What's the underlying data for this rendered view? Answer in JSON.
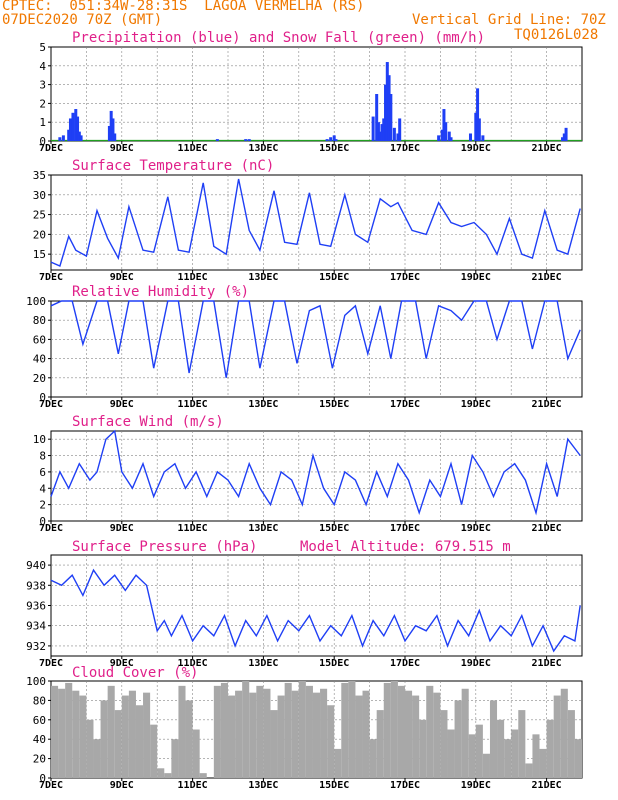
{
  "header": {
    "line1": "CPTEC:  051:34W-28:31S  LAGOA VERMELHA (RS)",
    "line2_left": "07DEC2020 70Z (GMT)",
    "line2_right": "Vertical Grid Line: 70Z",
    "code": "TQ0126L028"
  },
  "colors": {
    "line": "#1f3ff5",
    "snow": "#20a020",
    "title": "#e0208a",
    "header": "#f07800",
    "cloud": "#a8a8a8"
  },
  "chart_data": [
    {
      "id": "precip",
      "type": "bar",
      "title": "Precipitation (blue) and Snow Fall (green) (mm/h)",
      "x_ticks": [
        "7DEC",
        "9DEC",
        "11DEC",
        "13DEC",
        "15DEC",
        "17DEC",
        "19DEC",
        "21DEC"
      ],
      "ylim": [
        0,
        5
      ],
      "y_ticks": [
        0,
        1,
        2,
        3,
        4,
        5
      ],
      "x_unit": "day offset from 7DEC",
      "x": [
        0.25,
        0.35,
        0.5,
        0.55,
        0.62,
        0.7,
        0.75,
        0.8,
        0.85,
        1.65,
        1.7,
        1.75,
        1.8,
        4.7,
        5.5,
        5.6,
        7.8,
        7.9,
        8.0,
        8.05,
        9.1,
        9.2,
        9.25,
        9.3,
        9.35,
        9.4,
        9.45,
        9.5,
        9.55,
        9.6,
        9.7,
        9.8,
        9.85,
        10.95,
        11.05,
        11.1,
        11.15,
        11.25,
        11.3,
        11.85,
        12.0,
        12.05,
        12.1,
        12.2,
        14.45,
        14.5,
        14.55
      ],
      "values": [
        0.2,
        0.3,
        0.6,
        1.2,
        1.5,
        1.7,
        1.3,
        0.5,
        0.3,
        0.8,
        1.6,
        1.2,
        0.4,
        0.1,
        0.1,
        0.1,
        0.1,
        0.2,
        0.3,
        0.1,
        1.3,
        2.5,
        1.0,
        0.5,
        0.9,
        1.2,
        3.0,
        4.2,
        3.5,
        2.5,
        0.7,
        0.4,
        1.2,
        0.3,
        0.6,
        1.7,
        1.0,
        0.5,
        0.2,
        0.4,
        1.5,
        2.8,
        1.2,
        0.3,
        0.2,
        0.4,
        0.7
      ],
      "snow": 0
    },
    {
      "id": "temp",
      "type": "line",
      "title": "Surface Temperature (nC)",
      "x_ticks": [
        "7DEC",
        "9DEC",
        "11DEC",
        "13DEC",
        "15DEC",
        "17DEC",
        "19DEC",
        "21DEC"
      ],
      "ylim": [
        11,
        35
      ],
      "y_ticks": [
        15,
        20,
        25,
        30,
        35
      ],
      "x": [
        0,
        0.25,
        0.5,
        0.7,
        1.0,
        1.3,
        1.6,
        1.9,
        2.2,
        2.6,
        2.9,
        3.3,
        3.6,
        3.9,
        4.3,
        4.6,
        4.95,
        5.3,
        5.6,
        5.9,
        6.3,
        6.6,
        6.95,
        7.3,
        7.6,
        7.9,
        8.3,
        8.6,
        8.95,
        9.3,
        9.6,
        9.8,
        10.2,
        10.6,
        10.95,
        11.3,
        11.6,
        11.95,
        12.3,
        12.6,
        12.95,
        13.3,
        13.6,
        13.95,
        14.3,
        14.6,
        14.95
      ],
      "values": [
        13,
        12,
        19.5,
        16,
        14.5,
        26,
        19,
        14,
        27,
        16,
        15.5,
        29.5,
        16,
        15.5,
        33,
        17,
        15,
        34,
        21,
        16,
        31,
        18,
        17.5,
        30.5,
        17.5,
        17,
        30,
        20,
        18,
        29,
        27,
        28,
        21,
        20,
        28,
        23,
        22,
        23,
        20,
        15,
        24,
        15,
        14,
        26,
        16,
        15,
        26.5
      ]
    },
    {
      "id": "rh",
      "type": "line",
      "title": "Relative Humidity (%)",
      "x_ticks": [
        "7DEC",
        "9DEC",
        "11DEC",
        "13DEC",
        "15DEC",
        "17DEC",
        "19DEC",
        "21DEC"
      ],
      "ylim": [
        0,
        100
      ],
      "y_ticks": [
        0,
        20,
        40,
        60,
        80,
        100
      ],
      "x": [
        0,
        0.3,
        0.6,
        0.9,
        1.3,
        1.6,
        1.9,
        2.2,
        2.6,
        2.9,
        3.3,
        3.6,
        3.9,
        4.3,
        4.6,
        4.95,
        5.3,
        5.6,
        5.9,
        6.3,
        6.6,
        6.95,
        7.3,
        7.6,
        7.95,
        8.3,
        8.6,
        8.95,
        9.3,
        9.6,
        9.9,
        10.3,
        10.6,
        10.95,
        11.3,
        11.6,
        11.95,
        12.3,
        12.6,
        12.95,
        13.3,
        13.6,
        13.95,
        14.3,
        14.6,
        14.95
      ],
      "values": [
        95,
        100,
        100,
        55,
        100,
        100,
        45,
        100,
        100,
        30,
        100,
        100,
        25,
        100,
        100,
        20,
        100,
        100,
        30,
        100,
        100,
        35,
        90,
        95,
        30,
        85,
        95,
        45,
        95,
        40,
        100,
        100,
        40,
        95,
        90,
        80,
        100,
        100,
        60,
        100,
        100,
        50,
        100,
        100,
        40,
        70
      ]
    },
    {
      "id": "wind",
      "type": "line",
      "title": "Surface Wind (m/s)",
      "x_ticks": [
        "7DEC",
        "9DEC",
        "11DEC",
        "13DEC",
        "15DEC",
        "17DEC",
        "19DEC",
        "21DEC"
      ],
      "ylim": [
        0,
        11
      ],
      "y_ticks": [
        0,
        2,
        4,
        6,
        8,
        10
      ],
      "x": [
        0,
        0.25,
        0.5,
        0.8,
        1.1,
        1.3,
        1.55,
        1.8,
        2.0,
        2.3,
        2.6,
        2.9,
        3.2,
        3.5,
        3.8,
        4.1,
        4.4,
        4.7,
        5.0,
        5.3,
        5.6,
        5.9,
        6.2,
        6.5,
        6.8,
        7.1,
        7.4,
        7.7,
        8.0,
        8.3,
        8.6,
        8.9,
        9.2,
        9.5,
        9.8,
        10.1,
        10.4,
        10.7,
        11.0,
        11.3,
        11.6,
        11.9,
        12.2,
        12.5,
        12.8,
        13.1,
        13.4,
        13.7,
        14.0,
        14.3,
        14.6,
        14.95
      ],
      "values": [
        3,
        6,
        4,
        7,
        5,
        6,
        10,
        11,
        6,
        4,
        7,
        3,
        6,
        7,
        4,
        6,
        3,
        6,
        5,
        3,
        7,
        4,
        2,
        6,
        5,
        2,
        8,
        4,
        2,
        6,
        5,
        2,
        6,
        3,
        7,
        5,
        1,
        5,
        3,
        7,
        2,
        8,
        6,
        3,
        6,
        7,
        5,
        1,
        7,
        3,
        10,
        8
      ]
    },
    {
      "id": "pressure",
      "type": "line",
      "title": "Surface Pressure (hPa)",
      "subtitle": "Model Altitude: 679.515 m",
      "x_ticks": [
        "7DEC",
        "9DEC",
        "11DEC",
        "13DEC",
        "15DEC",
        "17DEC",
        "19DEC",
        "21DEC"
      ],
      "ylim": [
        931,
        941
      ],
      "y_ticks": [
        932,
        934,
        936,
        938,
        940
      ],
      "x": [
        0,
        0.3,
        0.6,
        0.9,
        1.2,
        1.5,
        1.8,
        2.1,
        2.4,
        2.7,
        3.0,
        3.2,
        3.4,
        3.7,
        4.0,
        4.3,
        4.6,
        4.9,
        5.2,
        5.5,
        5.8,
        6.1,
        6.4,
        6.7,
        7.0,
        7.3,
        7.6,
        7.9,
        8.2,
        8.5,
        8.8,
        9.1,
        9.4,
        9.7,
        10.0,
        10.3,
        10.6,
        10.9,
        11.2,
        11.5,
        11.8,
        12.1,
        12.4,
        12.7,
        13.0,
        13.3,
        13.6,
        13.9,
        14.2,
        14.5,
        14.8,
        14.95
      ],
      "values": [
        938.5,
        938,
        939,
        937,
        939.5,
        938,
        939,
        937.5,
        939,
        938,
        933.5,
        934.5,
        933,
        935,
        932.5,
        934,
        933,
        935,
        932,
        934.5,
        933,
        935,
        932.5,
        934.5,
        933.5,
        935,
        932.5,
        934,
        933,
        935,
        932,
        934.5,
        933,
        935,
        932.5,
        934,
        933.5,
        935,
        932,
        934.5,
        933,
        935.5,
        932.5,
        934,
        933,
        935,
        932,
        934,
        931.5,
        933,
        932.5,
        936
      ]
    },
    {
      "id": "cloud",
      "type": "bar",
      "title": "Cloud Cover (%)",
      "x_ticks": [
        "7DEC",
        "9DEC",
        "11DEC",
        "13DEC",
        "15DEC",
        "17DEC",
        "19DEC",
        "21DEC"
      ],
      "ylim": [
        0,
        100
      ],
      "y_ticks": [
        0,
        20,
        40,
        60,
        80,
        100
      ],
      "x": [
        0.1,
        0.3,
        0.5,
        0.7,
        0.9,
        1.1,
        1.3,
        1.5,
        1.7,
        1.9,
        2.1,
        2.3,
        2.5,
        2.7,
        2.9,
        3.1,
        3.3,
        3.5,
        3.7,
        3.9,
        4.1,
        4.3,
        4.5,
        4.7,
        4.9,
        5.1,
        5.3,
        5.5,
        5.7,
        5.9,
        6.1,
        6.3,
        6.5,
        6.7,
        6.9,
        7.1,
        7.3,
        7.5,
        7.7,
        7.9,
        8.1,
        8.3,
        8.5,
        8.7,
        8.9,
        9.1,
        9.3,
        9.5,
        9.7,
        9.9,
        10.1,
        10.3,
        10.5,
        10.7,
        10.9,
        11.1,
        11.3,
        11.5,
        11.7,
        11.9,
        12.1,
        12.3,
        12.5,
        12.7,
        12.9,
        13.1,
        13.3,
        13.5,
        13.7,
        13.9,
        14.1,
        14.3,
        14.5,
        14.7,
        14.9
      ],
      "values": [
        95,
        92,
        98,
        90,
        85,
        60,
        40,
        80,
        95,
        70,
        85,
        90,
        75,
        88,
        55,
        10,
        5,
        40,
        95,
        80,
        50,
        5,
        0,
        95,
        98,
        85,
        90,
        100,
        88,
        95,
        92,
        70,
        85,
        98,
        90,
        100,
        95,
        88,
        92,
        75,
        30,
        98,
        100,
        85,
        90,
        40,
        70,
        98,
        100,
        95,
        90,
        85,
        60,
        95,
        88,
        70,
        50,
        80,
        92,
        45,
        55,
        25,
        80,
        60,
        40,
        50,
        70,
        15,
        45,
        30,
        60,
        85,
        92,
        70,
        40
      ]
    }
  ]
}
